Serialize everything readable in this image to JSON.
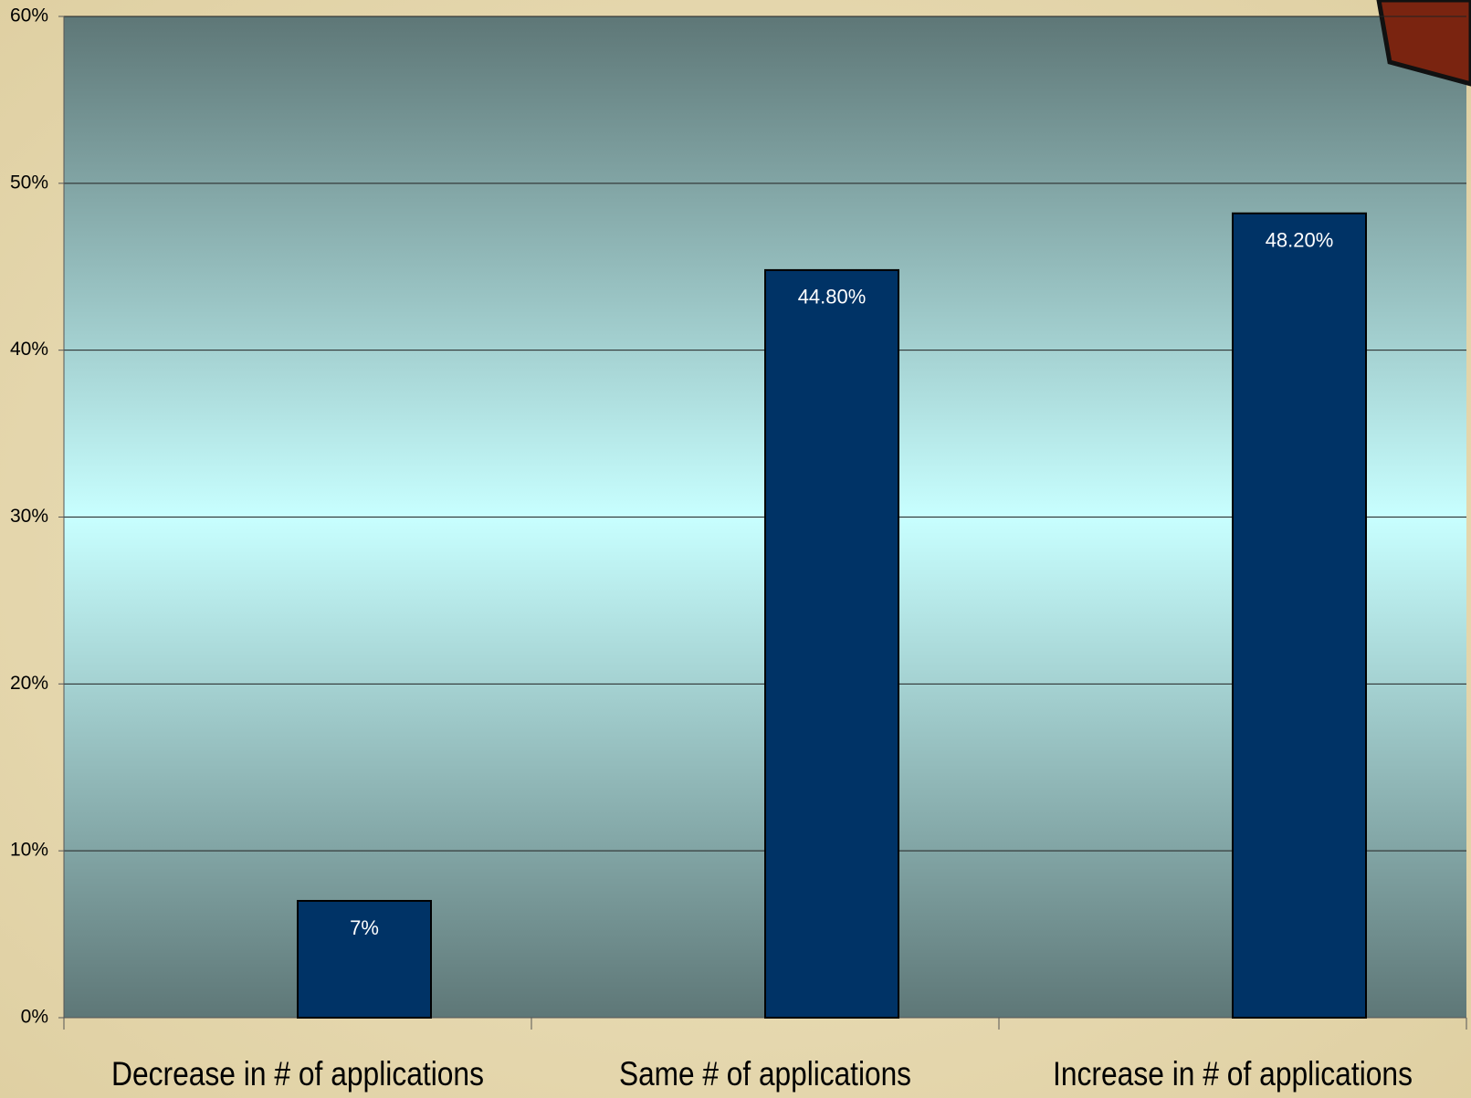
{
  "chart_data": {
    "type": "bar",
    "categories": [
      "Decrease in # of applications",
      "Same # of applications",
      "Increase in # of applications"
    ],
    "values": [
      7,
      44.8,
      48.2
    ],
    "value_labels": [
      "7%",
      "44.80%",
      "48.20%"
    ],
    "color": "#003366",
    "ylim": [
      0,
      60
    ],
    "yticks": [
      {
        "value": 0,
        "label": "0%"
      },
      {
        "value": 10,
        "label": "10%"
      },
      {
        "value": 20,
        "label": "20%"
      },
      {
        "value": 30,
        "label": "30%"
      },
      {
        "value": 40,
        "label": "40%"
      },
      {
        "value": 50,
        "label": "50%"
      },
      {
        "value": 60,
        "label": "60%"
      }
    ],
    "grid": true
  }
}
